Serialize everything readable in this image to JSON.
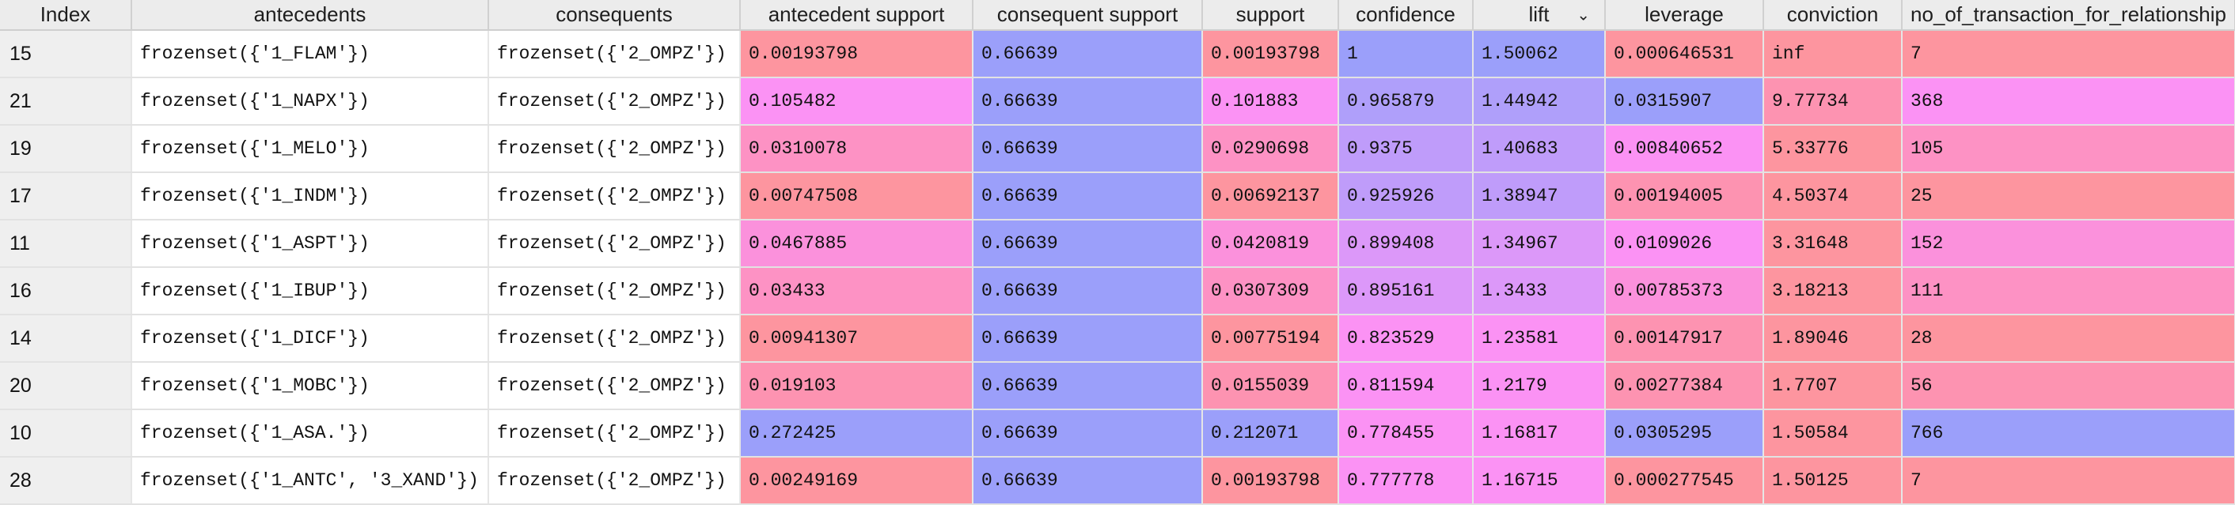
{
  "colors": {
    "red": "#fd959f",
    "pinkred": "#fd93b1",
    "pink": "#fd92c4",
    "pinkmag": "#fb91dc",
    "magenta": "#fb92f4",
    "magblue": "#dc98f9",
    "purple": "#bf9cfa",
    "lavender": "#af9ffa",
    "blue": "#9b9ffa",
    "header_bg": "#ececec",
    "index_bg": "#efefef"
  },
  "table": {
    "columns": [
      {
        "label": "Index",
        "key": "index"
      },
      {
        "label": "antecedents",
        "key": "antecedents"
      },
      {
        "label": "consequents",
        "key": "consequents"
      },
      {
        "label": "antecedent support",
        "key": "ant_support"
      },
      {
        "label": "consequent support",
        "key": "cons_support"
      },
      {
        "label": "support",
        "key": "support"
      },
      {
        "label": "confidence",
        "key": "confidence"
      },
      {
        "label": "lift",
        "key": "lift",
        "sorted": true
      },
      {
        "label": "leverage",
        "key": "leverage"
      },
      {
        "label": "conviction",
        "key": "conviction"
      },
      {
        "label": "no_of_transaction_for_relationship",
        "key": "n"
      }
    ],
    "rows": [
      {
        "index": "15",
        "antecedents": "frozenset({'1_FLAM'})",
        "consequents": "frozenset({'2_OMPZ'})",
        "ant_support": "0.00193798",
        "cons_support": "0.66639",
        "support": "0.00193798",
        "confidence": "1",
        "lift": "1.50062",
        "leverage": "0.000646531",
        "conviction": "inf",
        "n": "7",
        "colors": {
          "ant_support": "red",
          "cons_support": "blue",
          "support": "red",
          "confidence": "blue",
          "lift": "blue",
          "leverage": "red",
          "conviction": "red",
          "n": "red"
        }
      },
      {
        "index": "21",
        "antecedents": "frozenset({'1_NAPX'})",
        "consequents": "frozenset({'2_OMPZ'})",
        "ant_support": "0.105482",
        "cons_support": "0.66639",
        "support": "0.101883",
        "confidence": "0.965879",
        "lift": "1.44942",
        "leverage": "0.0315907",
        "conviction": "9.77734",
        "n": "368",
        "colors": {
          "ant_support": "magenta",
          "cons_support": "blue",
          "support": "magenta",
          "confidence": "lavender",
          "lift": "lavender",
          "leverage": "blue",
          "conviction": "pinkred",
          "n": "magenta"
        }
      },
      {
        "index": "19",
        "antecedents": "frozenset({'1_MELO'})",
        "consequents": "frozenset({'2_OMPZ'})",
        "ant_support": "0.0310078",
        "cons_support": "0.66639",
        "support": "0.0290698",
        "confidence": "0.9375",
        "lift": "1.40683",
        "leverage": "0.00840652",
        "conviction": "5.33776",
        "n": "105",
        "colors": {
          "ant_support": "pink",
          "cons_support": "blue",
          "support": "pink",
          "confidence": "purple",
          "lift": "purple",
          "leverage": "magenta",
          "conviction": "red",
          "n": "pink"
        }
      },
      {
        "index": "17",
        "antecedents": "frozenset({'1_INDM'})",
        "consequents": "frozenset({'2_OMPZ'})",
        "ant_support": "0.00747508",
        "cons_support": "0.66639",
        "support": "0.00692137",
        "confidence": "0.925926",
        "lift": "1.38947",
        "leverage": "0.00194005",
        "conviction": "4.50374",
        "n": "25",
        "colors": {
          "ant_support": "red",
          "cons_support": "blue",
          "support": "red",
          "confidence": "purple",
          "lift": "purple",
          "leverage": "pinkred",
          "conviction": "red",
          "n": "red"
        }
      },
      {
        "index": "11",
        "antecedents": "frozenset({'1_ASPT'})",
        "consequents": "frozenset({'2_OMPZ'})",
        "ant_support": "0.0467885",
        "cons_support": "0.66639",
        "support": "0.0420819",
        "confidence": "0.899408",
        "lift": "1.34967",
        "leverage": "0.0109026",
        "conviction": "3.31648",
        "n": "152",
        "colors": {
          "ant_support": "pinkmag",
          "cons_support": "blue",
          "support": "pinkmag",
          "confidence": "magblue",
          "lift": "magblue",
          "leverage": "magenta",
          "conviction": "red",
          "n": "pinkmag"
        }
      },
      {
        "index": "16",
        "antecedents": "frozenset({'1_IBUP'})",
        "consequents": "frozenset({'2_OMPZ'})",
        "ant_support": "0.03433",
        "cons_support": "0.66639",
        "support": "0.0307309",
        "confidence": "0.895161",
        "lift": "1.3433",
        "leverage": "0.00785373",
        "conviction": "3.18213",
        "n": "111",
        "colors": {
          "ant_support": "pink",
          "cons_support": "blue",
          "support": "pink",
          "confidence": "magblue",
          "lift": "magblue",
          "leverage": "pinkmag",
          "conviction": "red",
          "n": "pink"
        }
      },
      {
        "index": "14",
        "antecedents": "frozenset({'1_DICF'})",
        "consequents": "frozenset({'2_OMPZ'})",
        "ant_support": "0.00941307",
        "cons_support": "0.66639",
        "support": "0.00775194",
        "confidence": "0.823529",
        "lift": "1.23581",
        "leverage": "0.00147917",
        "conviction": "1.89046",
        "n": "28",
        "colors": {
          "ant_support": "red",
          "cons_support": "blue",
          "support": "red",
          "confidence": "magenta",
          "lift": "magenta",
          "leverage": "pinkred",
          "conviction": "red",
          "n": "red"
        }
      },
      {
        "index": "20",
        "antecedents": "frozenset({'1_MOBC'})",
        "consequents": "frozenset({'2_OMPZ'})",
        "ant_support": "0.019103",
        "cons_support": "0.66639",
        "support": "0.0155039",
        "confidence": "0.811594",
        "lift": "1.2179",
        "leverage": "0.00277384",
        "conviction": "1.7707",
        "n": "56",
        "colors": {
          "ant_support": "pinkred",
          "cons_support": "blue",
          "support": "pinkred",
          "confidence": "magenta",
          "lift": "magenta",
          "leverage": "pinkred",
          "conviction": "red",
          "n": "pinkred"
        }
      },
      {
        "index": "10",
        "antecedents": "frozenset({'1_ASA.'})",
        "consequents": "frozenset({'2_OMPZ'})",
        "ant_support": "0.272425",
        "cons_support": "0.66639",
        "support": "0.212071",
        "confidence": "0.778455",
        "lift": "1.16817",
        "leverage": "0.0305295",
        "conviction": "1.50584",
        "n": "766",
        "colors": {
          "ant_support": "blue",
          "cons_support": "blue",
          "support": "blue",
          "confidence": "magenta",
          "lift": "magenta",
          "leverage": "blue",
          "conviction": "red",
          "n": "blue"
        }
      },
      {
        "index": "28",
        "antecedents": "frozenset({'1_ANTC', '3_XAND'})",
        "consequents": "frozenset({'2_OMPZ'})",
        "ant_support": "0.00249169",
        "cons_support": "0.66639",
        "support": "0.00193798",
        "confidence": "0.777778",
        "lift": "1.16715",
        "leverage": "0.000277545",
        "conviction": "1.50125",
        "n": "7",
        "colors": {
          "ant_support": "red",
          "cons_support": "blue",
          "support": "red",
          "confidence": "magenta",
          "lift": "magenta",
          "leverage": "red",
          "conviction": "red",
          "n": "red"
        }
      }
    ]
  }
}
